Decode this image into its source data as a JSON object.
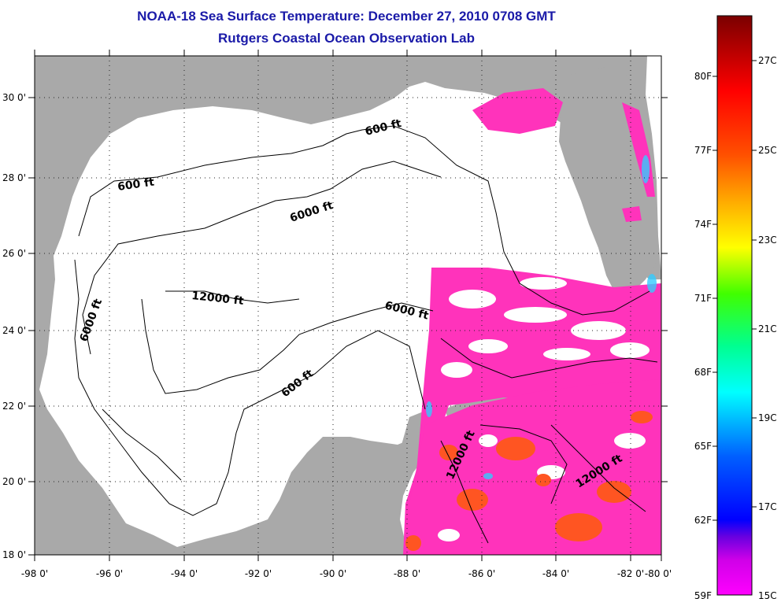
{
  "header": {
    "title": "NOAA-18 Sea Surface Temperature:  December 27, 2010 0708 GMT",
    "subtitle": "Rutgers Coastal Ocean Observation Lab"
  },
  "axes": {
    "lon_labels": [
      "-98 0'",
      "-96 0'",
      "-94 0'",
      "-92 0'",
      "-90 0'",
      "-88 0'",
      "-86 0'",
      "-84 0'",
      "-82 0'",
      "-80 0'"
    ],
    "lat_labels": [
      "30 0'",
      "28 0'",
      "26 0'",
      "24 0'",
      "22 0'",
      "20 0'",
      "18 0'"
    ]
  },
  "contours": [
    {
      "text": "600 ft"
    },
    {
      "text": "600 ft"
    },
    {
      "text": "6000 ft"
    },
    {
      "text": "12000 ft"
    },
    {
      "text": "6000 ft"
    },
    {
      "text": "6000 ft"
    },
    {
      "text": "600 ft"
    },
    {
      "text": "12000 ft"
    },
    {
      "text": "12000 ft"
    }
  ],
  "colorbar": {
    "fahrenheit": [
      "80F",
      "77F",
      "74F",
      "71F",
      "68F",
      "65F",
      "62F",
      "59F"
    ],
    "celsius": [
      "27C",
      "25C",
      "23C",
      "21C",
      "19C",
      "17C",
      "15C"
    ]
  },
  "colors": {
    "land": "#a9a9a9",
    "ocean": "#ffffff",
    "sst_pink": "#ff33bb",
    "sst_warm": "#ff5522",
    "title": "#1a1aa8"
  }
}
